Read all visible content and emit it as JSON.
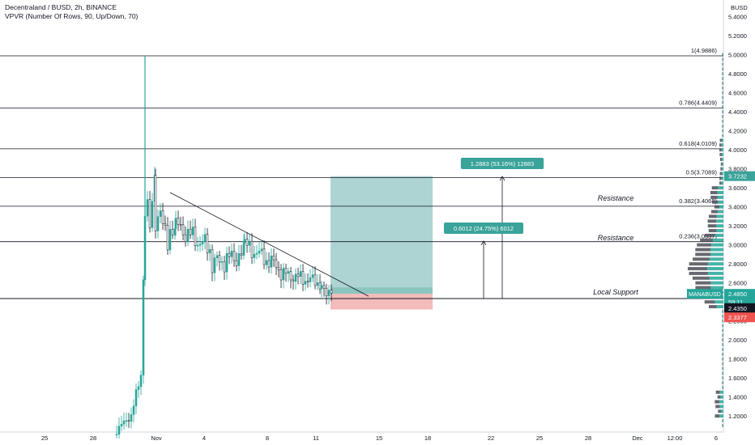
{
  "header": {
    "symbol": "Decentraland / BUSD",
    "interval": "2h",
    "exchange": "BINANCE",
    "indicator": "VPVR (Number Of Rows, 90, Up/Down, 70)"
  },
  "colors": {
    "up": "#26a69a",
    "down": "#ef5350",
    "candle": "#131722",
    "target_zone": "#9fccca",
    "stop_zone": "#f2b4b3",
    "label_bg": "#3aa39a",
    "support_label_bg": "#26a69a",
    "stop_label_bg": "#ef5350",
    "cursor_label_bg": "#131722"
  },
  "chart_data": {
    "type": "candlestick",
    "symbol": "MANABUSD",
    "currency": "BUSD",
    "y_ticks": [
      "5.4000",
      "5.2000",
      "5.0000",
      "4.8000",
      "4.6000",
      "4.4000",
      "4.2000",
      "4.0000",
      "3.8000",
      "3.6000",
      "3.4000",
      "3.2000",
      "3.0000",
      "2.8000",
      "2.6000",
      "2.4000",
      "2.2000",
      "2.0000",
      "1.8000",
      "1.6000",
      "1.4000",
      "1.2000"
    ],
    "x_ticks": [
      "25",
      "28",
      "Nov",
      "4",
      "8",
      "11",
      "15",
      "18",
      "22",
      "25",
      "28",
      "Dec",
      "12:00",
      "6"
    ],
    "fib_levels": [
      {
        "label": "1(4.9886)",
        "value": 4.9886
      },
      {
        "label": "0.786(4.4409)",
        "value": 4.4409
      },
      {
        "label": "0.618(4.0109)",
        "value": 4.0109
      },
      {
        "label": "0.5(3.7089)",
        "value": 3.7089
      },
      {
        "label": "0.382(3.4068)",
        "value": 3.4068
      },
      {
        "label": "0.236(3.0337)",
        "value": 3.0337
      }
    ],
    "support_value": 2.435,
    "annotations": {
      "resistance_1": "Resistance",
      "resistance_2": "Resistance",
      "local_support": "Local Support",
      "target_1": "1.2883 (53.16%) 12883",
      "target_2": "0.6012 (24.75%) 6012"
    },
    "price_labels": {
      "symbol_label": "MANABUSD",
      "last_price": "2.4850",
      "countdown": "59:11",
      "support_price": "2.4350",
      "stop_price": "2.3377",
      "target_price": "3.7232"
    },
    "candles_summary": [
      {
        "x": "Oct 27",
        "close": 1.05
      },
      {
        "x": "Oct 29",
        "close": 1.6
      },
      {
        "x": "Oct 31",
        "close": 4.9886
      },
      {
        "x": "Nov 2",
        "close": 3.2
      },
      {
        "x": "Nov 4",
        "close": 3.1
      },
      {
        "x": "Nov 8",
        "close": 2.9
      },
      {
        "x": "Nov 11",
        "close": 2.49
      }
    ]
  }
}
